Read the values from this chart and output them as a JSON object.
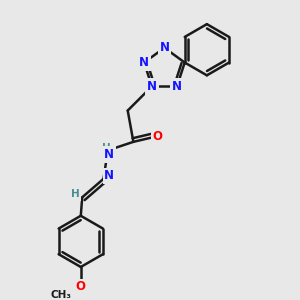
{
  "background_color": "#e8e8e8",
  "bond_color": "#1a1a1a",
  "N_color": "#1414ff",
  "O_color": "#ff0000",
  "H_color": "#4a9090",
  "line_width": 1.8,
  "fig_width": 3.0,
  "fig_height": 3.0,
  "dpi": 100,
  "xlim": [
    0,
    10
  ],
  "ylim": [
    0,
    10
  ]
}
